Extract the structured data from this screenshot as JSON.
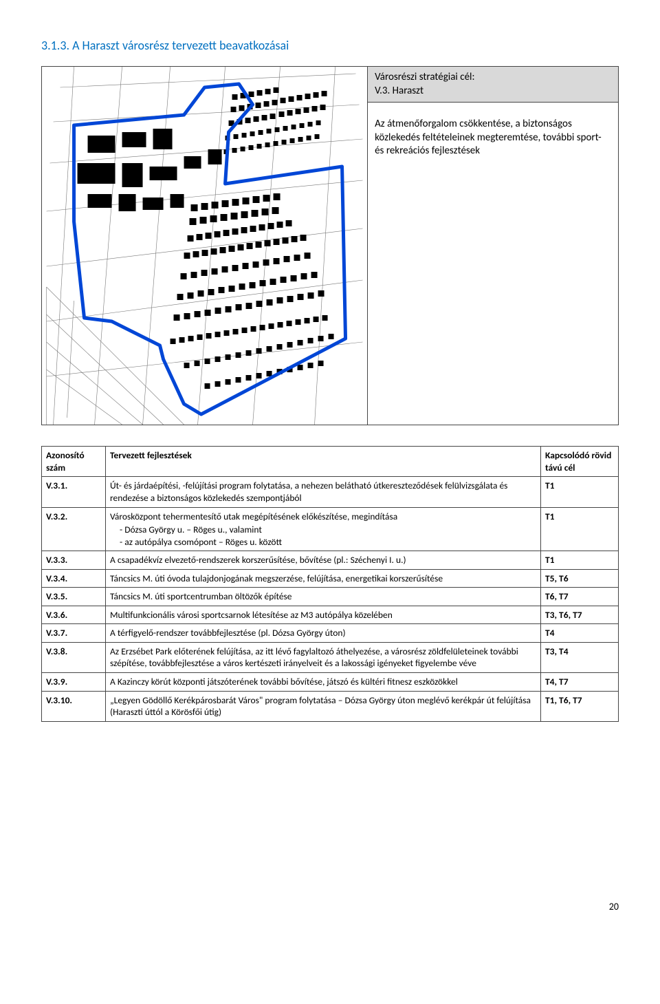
{
  "title": "3.1.3. A Haraszt városrész tervezett beavatkozásai",
  "goal_box": {
    "header": "Városrészi stratégiai cél:",
    "code": "V.3. Haraszt",
    "description": "Az átmenőforgalom csökkentése, a biztonságos közlekedés feltételeinek megteremtése, további sport- és rekreációs fejlesztések"
  },
  "table": {
    "headers": {
      "id": "Azonosító szám",
      "dev": "Tervezett fejlesztések",
      "link": "Kapcsolódó rövid távú cél"
    },
    "rows": [
      {
        "id": "V.3.1.",
        "dev": "Út- és járdaépítési, -felújítási program folytatása, a nehezen belátható útkereszteződések felülvizsgálata és rendezése a biztonságos közlekedés szempontjából",
        "sub": [],
        "link": "T1"
      },
      {
        "id": "V.3.2.",
        "dev": "Városközpont tehermentesítő utak megépítésének előkészítése, megindítása",
        "sub": [
          "Dózsa György u. – Röges u., valamint",
          "az autópálya csomópont – Röges u. között"
        ],
        "link": "T1"
      },
      {
        "id": "V.3.3.",
        "dev": "A csapadékvíz elvezető-rendszerek korszerűsítése, bővítése (pl.: Széchenyi I. u.)",
        "sub": [],
        "link": "T1"
      },
      {
        "id": "V.3.4.",
        "dev": "Táncsics M. úti óvoda tulajdonjogának megszerzése, felújítása, energetikai korszerűsítése",
        "sub": [],
        "link": "T5, T6"
      },
      {
        "id": "V.3.5.",
        "dev": "Táncsics M. úti sportcentrumban öltözők építése",
        "sub": [],
        "link": "T6, T7"
      },
      {
        "id": "V.3.6.",
        "dev": "Multifunkcionális városi sportcsarnok létesítése az M3 autópálya közelében",
        "sub": [],
        "link": "T3, T6, T7"
      },
      {
        "id": "V.3.7.",
        "dev": "A térfigyelő-rendszer továbbfejlesztése (pl. Dózsa György úton)",
        "sub": [],
        "link": "T4"
      },
      {
        "id": "V.3.8.",
        "dev": "Az Erzsébet Park előterének felújítása, az itt lévő fagylaltozó áthelyezése, a városrész zöldfelületeinek további szépítése, továbbfejlesztése a város kertészeti irányelveit és a lakossági igényeket figyelembe véve",
        "sub": [],
        "link": "T3, T4"
      },
      {
        "id": "V.3.9.",
        "dev": "A Kazinczy körút központi játszóterének további bővítése, játszó és kültéri fitnesz eszközökkel",
        "sub": [],
        "link": "T4, T7"
      },
      {
        "id": "V.3.10.",
        "dev": "„Legyen Gödöllő Kerékpárosbarát Város\" program folytatása – Dózsa György úton meglévő kerékpár út felújítása (Haraszti úttól a Körösfői útig)",
        "sub": [],
        "link": "T1, T6, T7"
      }
    ]
  },
  "page_number": "20",
  "map": {
    "boundary_color": "#0046d6",
    "boundary_width": 4,
    "bg": "#ffffff",
    "grid_color": "#777777",
    "footprint_color": "#000000"
  }
}
